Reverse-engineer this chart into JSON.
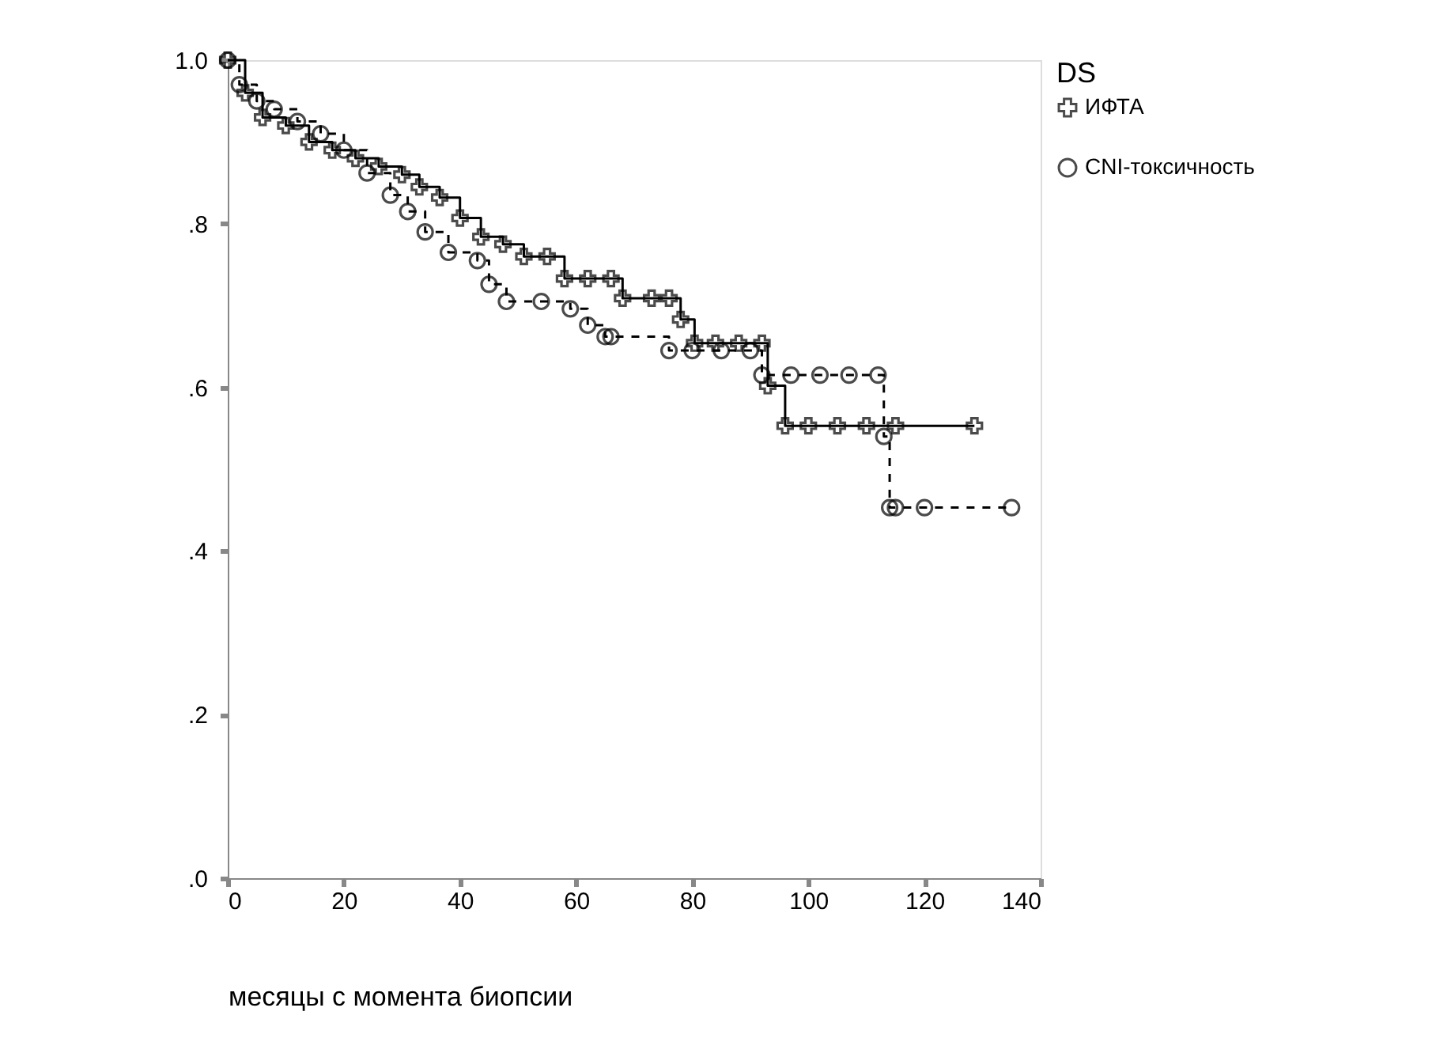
{
  "chart_data": {
    "type": "step",
    "xlabel": "месяцы с момента биопсии",
    "legend_title": "DS",
    "legend": "right",
    "grid": false,
    "xlim": [
      0,
      140
    ],
    "xticks": [
      0,
      20,
      40,
      60,
      80,
      100,
      120,
      140
    ],
    "ylim": [
      0,
      1.0
    ],
    "yticks": [
      {
        "value": 0,
        "label": ".0"
      },
      {
        "value": 0.2,
        "label": ".2"
      },
      {
        "value": 0.4,
        "label": ".4"
      },
      {
        "value": 0.6,
        "label": ".6"
      },
      {
        "value": 0.8,
        "label": ".8"
      },
      {
        "value": 1.0,
        "label": "1.0"
      }
    ],
    "series": [
      {
        "name": "ИФТА",
        "color": "#000000",
        "marker": "cross",
        "line_style": "solid",
        "x": [
          0,
          3,
          6,
          10,
          14,
          18,
          22,
          26,
          30,
          33,
          36.5,
          40,
          43.6,
          47.4,
          51,
          55,
          58,
          62,
          66,
          68,
          73,
          76,
          78,
          80.4,
          84,
          88,
          92,
          93,
          96,
          100,
          105,
          110,
          115,
          128.6
        ],
        "values": [
          1.0,
          0.96,
          0.93,
          0.92,
          0.9,
          0.89,
          0.88,
          0.87,
          0.86,
          0.845,
          0.832,
          0.807,
          0.784,
          0.775,
          0.76,
          0.76,
          0.733,
          0.733,
          0.733,
          0.709,
          0.709,
          0.709,
          0.683,
          0.654,
          0.654,
          0.654,
          0.654,
          0.602,
          0.553,
          0.553,
          0.553,
          0.553,
          0.553,
          0.553
        ]
      },
      {
        "name": "CNI-токсичность",
        "color": "#000000",
        "marker": "circle",
        "line_style": "dashed",
        "x": [
          0,
          2,
          5,
          8,
          12,
          16,
          20,
          24,
          28,
          31,
          34,
          38,
          43,
          45,
          48,
          54,
          59,
          62,
          65,
          66,
          76,
          80,
          85,
          90,
          92,
          97,
          102,
          107,
          112,
          113,
          114,
          115,
          120,
          135
        ],
        "values": [
          1.0,
          0.97,
          0.95,
          0.94,
          0.925,
          0.91,
          0.89,
          0.862,
          0.835,
          0.815,
          0.79,
          0.765,
          0.755,
          0.726,
          0.705,
          0.705,
          0.696,
          0.676,
          0.662,
          0.662,
          0.645,
          0.645,
          0.645,
          0.645,
          0.615,
          0.615,
          0.615,
          0.615,
          0.615,
          0.54,
          0.453,
          0.453,
          0.453,
          0.453
        ]
      }
    ]
  }
}
